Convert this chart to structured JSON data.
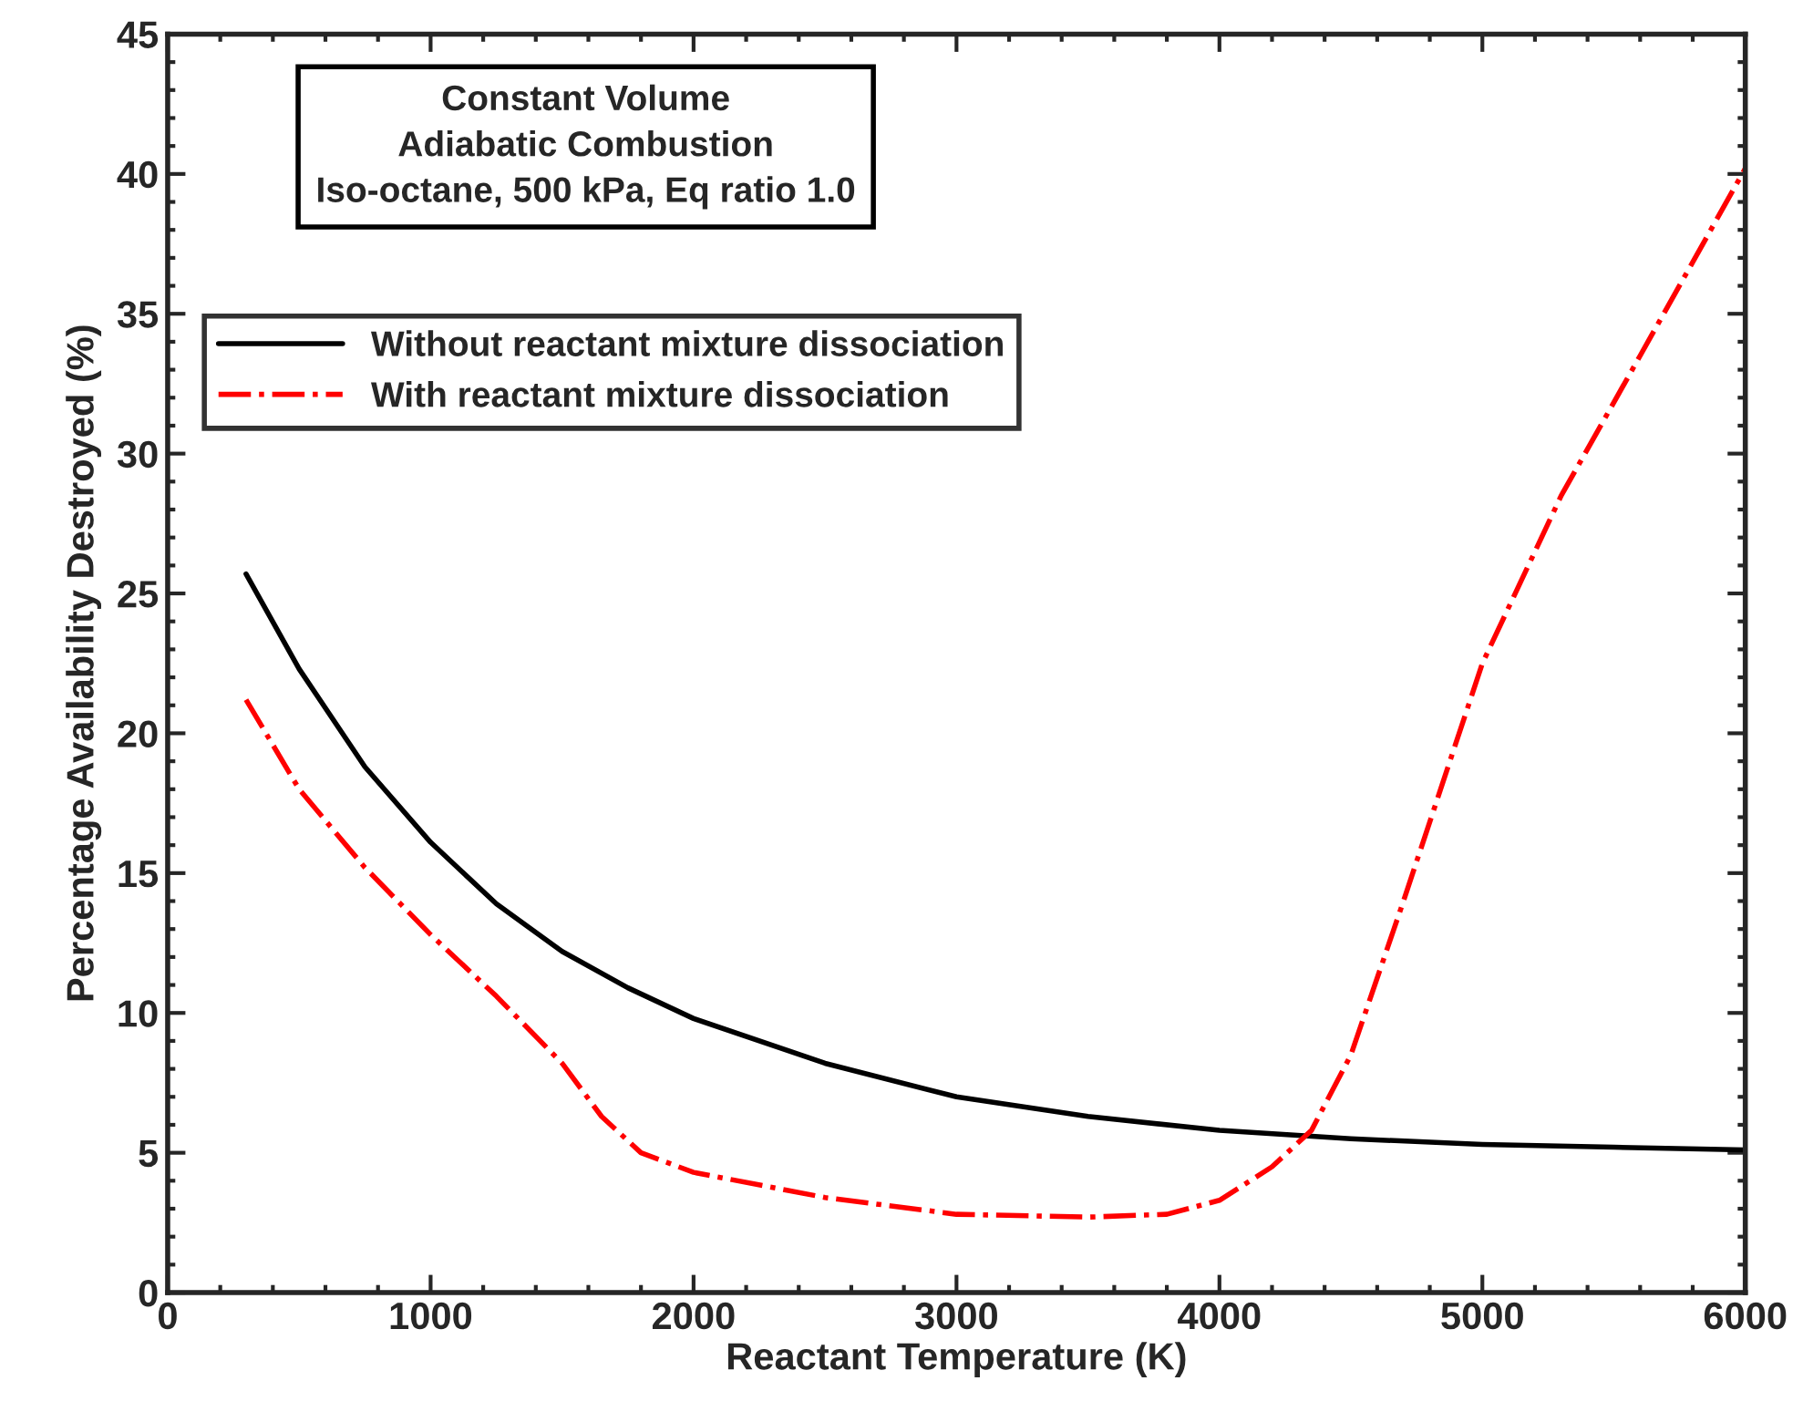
{
  "chart_data": {
    "type": "line",
    "xlabel": "Reactant Temperature (K)",
    "ylabel": "Percentage Availability Destroyed (%)",
    "annotations": [
      "Constant Volume",
      "Adiabatic Combustion",
      "Iso-octane, 500 kPa, Eq ratio 1.0"
    ],
    "xlim": [
      0,
      6000
    ],
    "xticks": [
      0,
      1000,
      2000,
      3000,
      4000,
      5000,
      6000
    ],
    "ylim": [
      0,
      45
    ],
    "yticks": [
      0,
      5,
      10,
      15,
      20,
      25,
      30,
      35,
      40,
      45
    ],
    "grid": false,
    "legend": "top left",
    "series": [
      {
        "name": "Without reactant mixture dissociation",
        "color": "#000000",
        "line_style": "solid",
        "x": [
          298,
          500,
          750,
          1000,
          1250,
          1500,
          1750,
          2000,
          2500,
          3000,
          3500,
          4000,
          4500,
          5000,
          5500,
          6000
        ],
        "values": [
          25.7,
          22.3,
          18.8,
          16.1,
          13.9,
          12.2,
          10.9,
          9.8,
          8.2,
          7.0,
          6.3,
          5.8,
          5.5,
          5.3,
          5.2,
          5.1
        ]
      },
      {
        "name": "With reactant mixture dissociation",
        "color": "#ff0000",
        "line_style": "dashdot",
        "x": [
          298,
          500,
          750,
          1000,
          1250,
          1500,
          1650,
          1800,
          2000,
          2500,
          3000,
          3500,
          3800,
          4000,
          4200,
          4350,
          4500,
          4700,
          5000,
          5300,
          5600,
          6000
        ],
        "values": [
          21.2,
          18.0,
          15.2,
          12.8,
          10.6,
          8.2,
          6.3,
          5.0,
          4.3,
          3.4,
          2.8,
          2.7,
          2.8,
          3.3,
          4.5,
          5.8,
          8.5,
          14,
          22.5,
          28.5,
          33.5,
          40.2
        ]
      }
    ]
  }
}
